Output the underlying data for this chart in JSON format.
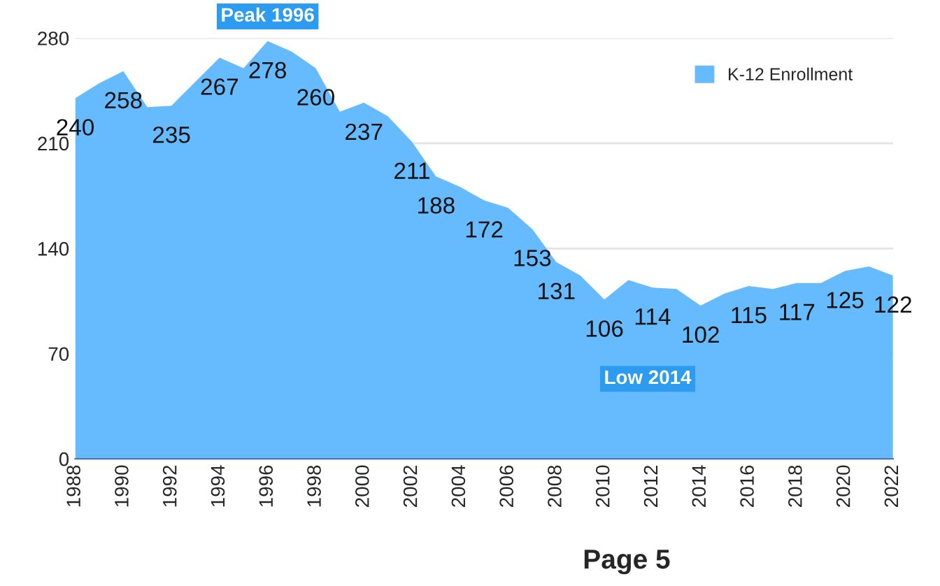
{
  "chart_data": {
    "type": "area",
    "x": [
      1988,
      1989,
      1990,
      1991,
      1992,
      1993,
      1994,
      1995,
      1996,
      1997,
      1998,
      1999,
      2000,
      2001,
      2002,
      2003,
      2004,
      2005,
      2006,
      2007,
      2008,
      2009,
      2010,
      2011,
      2012,
      2013,
      2014,
      2015,
      2016,
      2017,
      2018,
      2019,
      2020,
      2021,
      2022
    ],
    "series": [
      {
        "name": "K-12 Enrollment",
        "color": "#66bbff",
        "values": [
          240,
          250,
          258,
          234,
          235,
          251,
          267,
          260,
          278,
          271,
          260,
          231,
          237,
          228,
          211,
          188,
          181,
          172,
          167,
          153,
          131,
          122,
          106,
          119,
          114,
          113,
          102,
          110,
          115,
          113,
          117,
          117,
          125,
          128,
          122
        ],
        "value_labels": [
          "240",
          null,
          "258",
          null,
          "235",
          null,
          "267",
          null,
          "278",
          null,
          "260",
          null,
          "237",
          null,
          "211",
          "188",
          null,
          "172",
          null,
          "153",
          "131",
          null,
          "106",
          null,
          "114",
          null,
          "102",
          null,
          "115",
          null,
          "117",
          null,
          "125",
          null,
          "122"
        ]
      }
    ],
    "xlim": [
      1988,
      2022
    ],
    "xticks": [
      1988,
      1990,
      1992,
      1994,
      1996,
      1998,
      2000,
      2002,
      2004,
      2006,
      2008,
      2010,
      2012,
      2014,
      2016,
      2018,
      2020,
      2022
    ],
    "ylim": [
      0,
      280
    ],
    "yticks": [
      0,
      70,
      140,
      210,
      280
    ],
    "grid": "y",
    "legend": "top right",
    "annotations": [
      {
        "text": "Peak 1996",
        "x": 1996,
        "y": 278
      },
      "Low 2014",
      "Page 5"
    ]
  }
}
